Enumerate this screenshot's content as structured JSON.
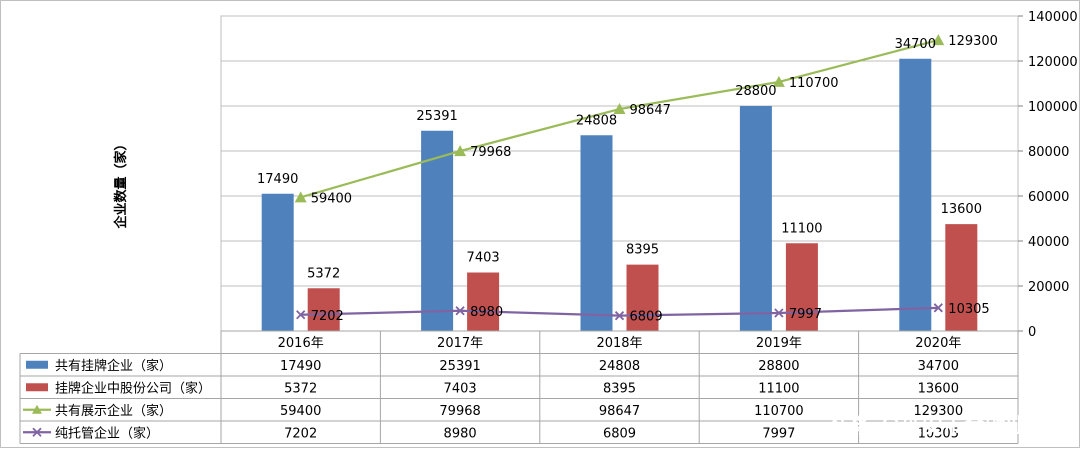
{
  "chart_data": {
    "type": "bar",
    "categories": [
      "2016年",
      "2017年",
      "2018年",
      "2019年",
      "2020年"
    ],
    "y_label": "企业数量（家）",
    "ylim": [
      0,
      140000
    ],
    "yticks": [
      0,
      20000,
      40000,
      60000,
      80000,
      100000,
      120000,
      140000
    ],
    "series": [
      {
        "name": "共有挂牌企业（家）",
        "kind": "bar",
        "color": "#4f81bd",
        "values": [
          17490,
          25391,
          24808,
          28800,
          34700
        ],
        "bar_heights": [
          61000,
          89000,
          87000,
          100000,
          121000
        ],
        "labels": [
          "17490",
          "25391",
          "24808",
          "28800",
          "34700"
        ]
      },
      {
        "name": "挂牌企业中股份公司（家）",
        "kind": "bar",
        "color": "#c0504d",
        "values": [
          5372,
          7403,
          8395,
          11100,
          13600
        ],
        "bar_heights": [
          19000,
          26000,
          29500,
          39000,
          47500
        ],
        "labels": [
          "5372",
          "7403",
          "8395",
          "11100",
          "13600"
        ]
      },
      {
        "name": "共有展示企业（家）",
        "kind": "line",
        "color": "#9bbb59",
        "marker": "triangle",
        "values": [
          59400,
          79968,
          98647,
          110700,
          129300
        ],
        "labels": [
          "59400",
          "79968",
          "98647",
          "110700",
          "129300"
        ]
      },
      {
        "name": "纯托管企业（家）",
        "kind": "line",
        "color": "#8064a2",
        "marker": "x",
        "values": [
          7202,
          8980,
          6809,
          7997,
          10305
        ],
        "labels": [
          "7202",
          "8980",
          "6809",
          "7997",
          "10305"
        ]
      }
    ],
    "table": {
      "rows": [
        [
          "17490",
          "25391",
          "24808",
          "28800",
          "34700"
        ],
        [
          "5372",
          "7403",
          "8395",
          "11100",
          "13600"
        ],
        [
          "59400",
          "79968",
          "98647",
          "110700",
          "129300"
        ],
        [
          "7202",
          "8980",
          "6809",
          "7997",
          "10305"
        ]
      ]
    }
  },
  "watermark": "头条 @延安市金融业协会"
}
